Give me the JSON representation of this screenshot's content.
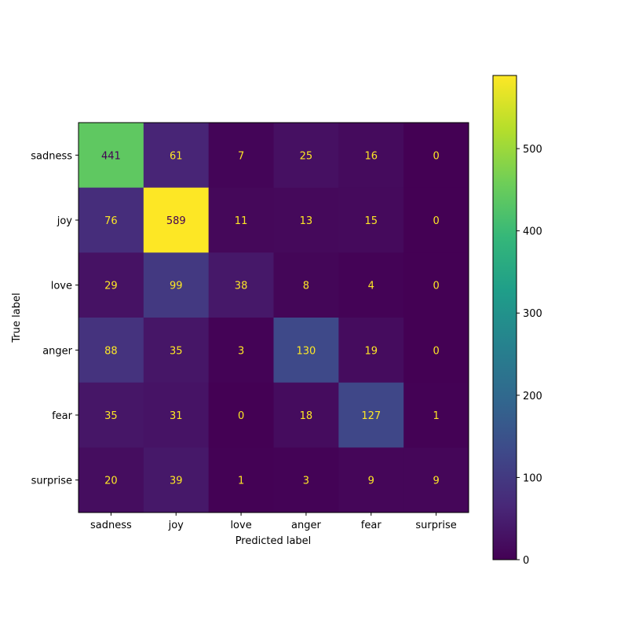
{
  "chart_data": {
    "type": "heatmap",
    "title": "",
    "xlabel": "Predicted label",
    "ylabel": "True label",
    "x_categories": [
      "sadness",
      "joy",
      "love",
      "anger",
      "fear",
      "surprise"
    ],
    "y_categories": [
      "sadness",
      "joy",
      "love",
      "anger",
      "fear",
      "surprise"
    ],
    "values": [
      [
        441,
        61,
        7,
        25,
        16,
        0
      ],
      [
        76,
        589,
        11,
        13,
        15,
        0
      ],
      [
        29,
        99,
        38,
        8,
        4,
        0
      ],
      [
        88,
        35,
        3,
        130,
        19,
        0
      ],
      [
        35,
        31,
        0,
        18,
        127,
        1
      ],
      [
        20,
        39,
        1,
        3,
        9,
        9
      ]
    ],
    "colormap": "viridis",
    "colorbar": {
      "range": [
        0,
        589
      ],
      "ticks": [
        0,
        100,
        200,
        300,
        400,
        500
      ]
    },
    "text_colors": {
      "dark": "#440154",
      "light": "#fde725"
    },
    "grid": false
  }
}
